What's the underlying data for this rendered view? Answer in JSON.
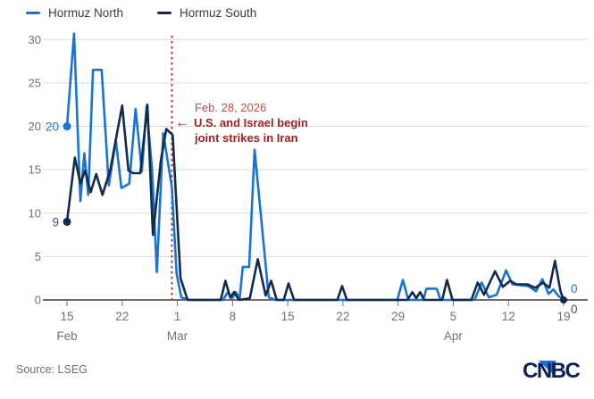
{
  "chart_data": {
    "type": "line",
    "title": "",
    "x_unit": "days since Feb 15, 2026",
    "ylim": [
      0,
      31
    ],
    "grid": "horizontal",
    "legend_position": "top-left",
    "y_ticks": [
      0,
      5,
      10,
      15,
      20,
      25,
      30
    ],
    "x_ticks": [
      {
        "day": 0,
        "label": "15",
        "month": "Feb"
      },
      {
        "day": 7,
        "label": "22"
      },
      {
        "day": 14,
        "label": "1",
        "month": "Mar"
      },
      {
        "day": 21,
        "label": "8"
      },
      {
        "day": 28,
        "label": "15"
      },
      {
        "day": 35,
        "label": "22"
      },
      {
        "day": 42,
        "label": "29"
      },
      {
        "day": 49,
        "label": "5",
        "month": "Apr"
      },
      {
        "day": 56,
        "label": "12"
      },
      {
        "day": 63,
        "label": "19"
      }
    ],
    "series": [
      {
        "name": "Hormuz North",
        "color": "#1873d2",
        "start_label": "20",
        "end_label": "0",
        "label_color": "#1873d2",
        "points": [
          [
            0,
            20
          ],
          [
            0.9,
            30.7
          ],
          [
            1.7,
            11.4
          ],
          [
            2.2,
            16.9
          ],
          [
            2.7,
            12.1
          ],
          [
            3.3,
            26.5
          ],
          [
            4.4,
            26.5
          ],
          [
            5.3,
            13.2
          ],
          [
            6.2,
            18.4
          ],
          [
            6.9,
            12.9
          ],
          [
            7.9,
            13.4
          ],
          [
            8.7,
            22
          ],
          [
            9.5,
            14.8
          ],
          [
            10.1,
            22.3
          ],
          [
            10.8,
            14.9
          ],
          [
            11.4,
            3.2
          ],
          [
            12.2,
            19.2
          ],
          [
            13.3,
            13
          ],
          [
            13.9,
            3
          ],
          [
            14.5,
            0.3
          ],
          [
            15.5,
            0
          ],
          [
            19.8,
            0
          ],
          [
            20.4,
            0.9
          ],
          [
            20.9,
            0.1
          ],
          [
            21.4,
            0.9
          ],
          [
            21.9,
            0.2
          ],
          [
            22.3,
            3.8
          ],
          [
            23.1,
            3.8
          ],
          [
            23.8,
            17.3
          ],
          [
            25.6,
            0.3
          ],
          [
            26.4,
            0
          ],
          [
            41.9,
            0
          ],
          [
            42.6,
            2.3
          ],
          [
            43.3,
            0
          ],
          [
            45.2,
            0
          ],
          [
            45.6,
            1.3
          ],
          [
            46.9,
            1.3
          ],
          [
            47.4,
            0
          ],
          [
            51.7,
            0
          ],
          [
            52.6,
            2
          ],
          [
            53.5,
            0.3
          ],
          [
            54.5,
            0.6
          ],
          [
            55.7,
            3.4
          ],
          [
            56.5,
            1.8
          ],
          [
            58.5,
            1.6
          ],
          [
            59.5,
            1
          ],
          [
            60.3,
            2.4
          ],
          [
            61.1,
            0.7
          ],
          [
            61.7,
            1.2
          ],
          [
            62.3,
            0.5
          ],
          [
            63,
            0
          ]
        ]
      },
      {
        "name": "Hormuz South",
        "color": "#132a4d",
        "start_label": "9",
        "end_label": "0",
        "label_color": "#44506b",
        "points": [
          [
            0,
            9
          ],
          [
            1,
            16.4
          ],
          [
            1.7,
            13.4
          ],
          [
            2.3,
            14.9
          ],
          [
            3,
            12.4
          ],
          [
            3.7,
            14.5
          ],
          [
            4.5,
            12.1
          ],
          [
            5.5,
            15
          ],
          [
            6.3,
            19
          ],
          [
            7,
            22.4
          ],
          [
            7.8,
            14.9
          ],
          [
            8.4,
            14.6
          ],
          [
            9.3,
            14.6
          ],
          [
            10.2,
            22.5
          ],
          [
            10.9,
            7.5
          ],
          [
            11.9,
            16
          ],
          [
            12.6,
            19.7
          ],
          [
            13.4,
            19
          ],
          [
            14.4,
            2.5
          ],
          [
            15.3,
            0
          ],
          [
            19.5,
            0
          ],
          [
            20.1,
            2.2
          ],
          [
            20.7,
            0.3
          ],
          [
            21.2,
            0.9
          ],
          [
            21.8,
            0
          ],
          [
            23.2,
            0.2
          ],
          [
            24.2,
            4.7
          ],
          [
            25.2,
            0.5
          ],
          [
            25.9,
            2.2
          ],
          [
            26.6,
            0
          ],
          [
            27.5,
            0
          ],
          [
            28.1,
            1.9
          ],
          [
            28.8,
            0
          ],
          [
            34.3,
            0
          ],
          [
            34.9,
            1.6
          ],
          [
            35.5,
            0
          ],
          [
            43.2,
            0
          ],
          [
            43.8,
            0.9
          ],
          [
            44.3,
            0.2
          ],
          [
            44.8,
            0.9
          ],
          [
            45.3,
            0
          ],
          [
            47.6,
            0
          ],
          [
            48.2,
            2.3
          ],
          [
            48.9,
            0
          ],
          [
            51.3,
            0
          ],
          [
            52.1,
            2
          ],
          [
            52.9,
            0.6
          ],
          [
            54.3,
            3.3
          ],
          [
            55.3,
            1.5
          ],
          [
            56.2,
            2.2
          ],
          [
            57,
            1.8
          ],
          [
            58.4,
            1.8
          ],
          [
            59.4,
            1.4
          ],
          [
            60.4,
            2
          ],
          [
            61.2,
            1.4
          ],
          [
            61.9,
            4.5
          ],
          [
            62.6,
            1
          ],
          [
            63,
            0
          ]
        ]
      }
    ],
    "event_line": {
      "day": 13.3,
      "color": "#b5352c",
      "style": "dotted"
    },
    "annotation": {
      "date": "Feb. 28, 2026",
      "line1": "U.S. and Israel begin",
      "line2": "joint strikes in Iran",
      "arrow": "←",
      "date_color": "#b1524c",
      "text_color": "#9c2222"
    },
    "axis": {
      "tick_label_color": "#6f7276",
      "gridline_color": "#dcdcdc",
      "axis_line_color": "#3b3b3b"
    }
  },
  "footer": {
    "source": "Source: LSEG",
    "logo_text": "CNBC",
    "logo_navy": "#0b2058",
    "logo_blue": "#1873d2"
  }
}
